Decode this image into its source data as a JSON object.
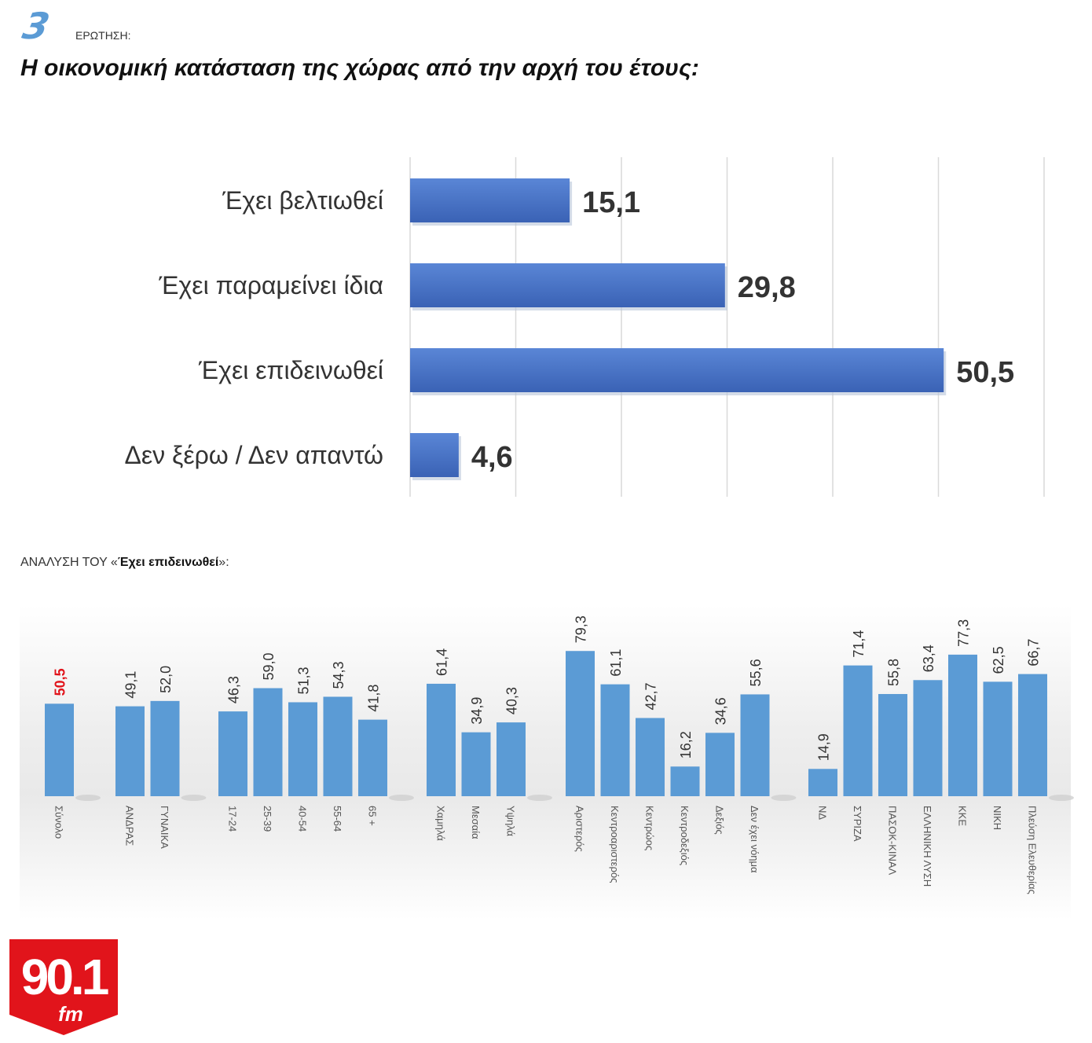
{
  "header": {
    "question_number": "3",
    "question_label": "ΕΡΩΤΗΣΗ:",
    "question_title": "Η οικονομική κατάσταση της χώρας από την αρχή του έτους:"
  },
  "breakdown": {
    "heading_prefix": "ΑΝΑΛΥΣΗ ΤΟΥ «",
    "heading_bold": "Έχει επιδεινωθεί",
    "heading_suffix": "»:"
  },
  "logo": {
    "text": "90.1",
    "subtext": "fm",
    "color": "#e1141b"
  },
  "colors": {
    "bar": "#4472c4",
    "breakdown_bar": "#5b9bd5",
    "highlight": "#e1141b"
  },
  "chart_data": [
    {
      "type": "bar",
      "orientation": "horizontal",
      "title": "Η οικονομική κατάσταση της χώρας από την αρχή του έτους:",
      "categories": [
        "Έχει βελτιωθεί",
        "Έχει παραμείνει ίδια",
        "Έχει επιδεινωθεί",
        "Δεν ξέρω / Δεν απαντώ"
      ],
      "values": [
        15.1,
        29.8,
        50.5,
        4.6
      ],
      "value_labels": [
        "15,1",
        "29,8",
        "50,5",
        "4,6"
      ],
      "xlim": [
        0,
        60
      ],
      "grid": true
    },
    {
      "type": "bar",
      "orientation": "vertical",
      "title": "ΑΝΑΛΥΣΗ ΤΟΥ «Έχει επιδεινωθεί»:",
      "groups": [
        {
          "categories": [
            "Σύνολο"
          ],
          "values": [
            50.5
          ],
          "value_labels": [
            "50,5"
          ]
        },
        {
          "categories": [
            "ΑΝΔΡΑΣ",
            "ΓΥΝΑΙΚΑ"
          ],
          "values": [
            49.1,
            52.0
          ],
          "value_labels": [
            "49,1",
            "52,0"
          ]
        },
        {
          "categories": [
            "17-24",
            "25-39",
            "40-54",
            "55-64",
            "65 +"
          ],
          "values": [
            46.3,
            59.0,
            51.3,
            54.3,
            41.8
          ],
          "value_labels": [
            "46,3",
            "59,0",
            "51,3",
            "54,3",
            "41,8"
          ]
        },
        {
          "categories": [
            "Χαμηλά",
            "Μεσαία",
            "Υψηλά"
          ],
          "values": [
            61.4,
            34.9,
            40.3
          ],
          "value_labels": [
            "61,4",
            "34,9",
            "40,3"
          ]
        },
        {
          "categories": [
            "Αριστερός",
            "Κεντροαριστερός",
            "Κεντρώος",
            "Κεντροδεξιός",
            "Δεξιός",
            "Δεν έχει νόημα"
          ],
          "values": [
            79.3,
            61.1,
            42.7,
            16.2,
            34.6,
            55.6
          ],
          "value_labels": [
            "79,3",
            "61,1",
            "42,7",
            "16,2",
            "34,6",
            "55,6"
          ]
        },
        {
          "categories": [
            "ΝΔ",
            "ΣΥΡΙΖΑ",
            "ΠΑΣΟΚ-ΚΙΝΑΛ",
            "ΕΛΛΗΝΙΚΗ ΛΥΣΗ",
            "ΚΚΕ",
            "ΝΙΚΗ",
            "Πλεύση Ελευθερίας"
          ],
          "values": [
            14.9,
            71.4,
            55.8,
            63.4,
            77.3,
            62.5,
            66.7
          ],
          "value_labels": [
            "14,9",
            "71,4",
            "55,8",
            "63,4",
            "77,3",
            "62,5",
            "66,7"
          ]
        }
      ],
      "highlight": "Σύνολο",
      "ylim": [
        0,
        80
      ]
    }
  ]
}
